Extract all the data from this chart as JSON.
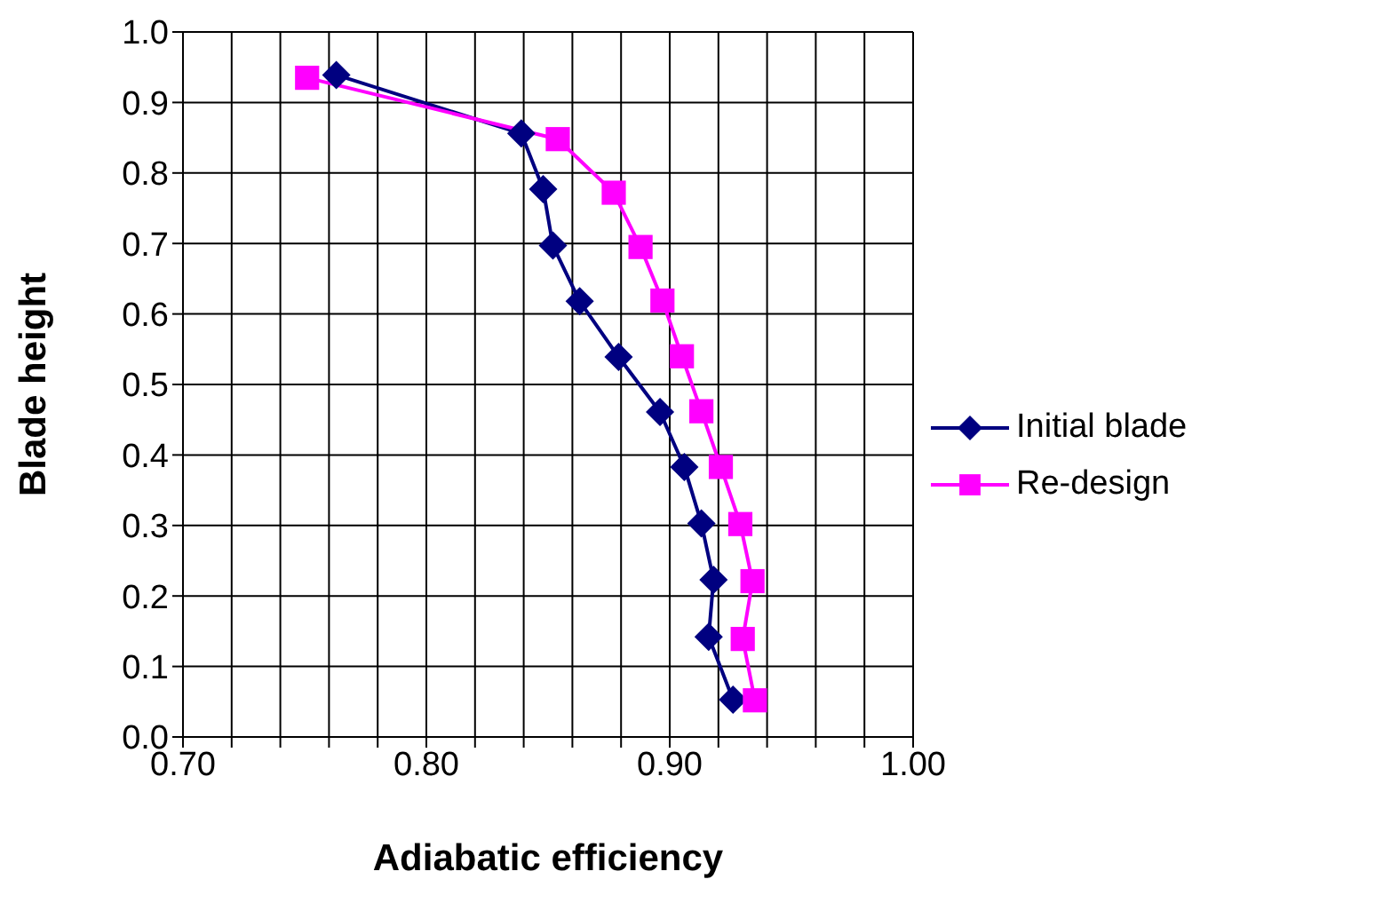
{
  "chart_data": {
    "type": "line",
    "xlabel": "Adiabatic efficiency",
    "ylabel": "Blade height",
    "xlim": [
      0.7,
      1.0
    ],
    "xticks": [
      {
        "value": 0.7,
        "label": "0.70"
      },
      {
        "value": 0.72,
        "label": null
      },
      {
        "value": 0.74,
        "label": null
      },
      {
        "value": 0.76,
        "label": null
      },
      {
        "value": 0.78,
        "label": null
      },
      {
        "value": 0.8,
        "label": "0.80"
      },
      {
        "value": 0.82,
        "label": null
      },
      {
        "value": 0.84,
        "label": null
      },
      {
        "value": 0.86,
        "label": null
      },
      {
        "value": 0.88,
        "label": null
      },
      {
        "value": 0.9,
        "label": "0.90"
      },
      {
        "value": 0.92,
        "label": null
      },
      {
        "value": 0.94,
        "label": null
      },
      {
        "value": 0.96,
        "label": null
      },
      {
        "value": 0.98,
        "label": null
      },
      {
        "value": 1.0,
        "label": "1.00"
      }
    ],
    "ylim": [
      0,
      1
    ],
    "yticks": [
      {
        "value": 0,
        "label": "0.0"
      },
      {
        "value": 0.1,
        "label": "0.1"
      },
      {
        "value": 0.2,
        "label": "0.2"
      },
      {
        "value": 0.3,
        "label": "0.3"
      },
      {
        "value": 0.4,
        "label": "0.4"
      },
      {
        "value": 0.5,
        "label": "0.5"
      },
      {
        "value": 0.6,
        "label": "0.6"
      },
      {
        "value": 0.7,
        "label": "0.7"
      },
      {
        "value": 0.8,
        "label": "0.8"
      },
      {
        "value": 0.9,
        "label": "0.9"
      },
      {
        "value": 1,
        "label": "1.0"
      }
    ],
    "grid": true,
    "legend": "right",
    "line_style": "solid",
    "series": [
      {
        "name": "Initial blade",
        "color": "#000080",
        "marker": "diamond",
        "x": [
          0.763,
          0.839,
          0.848,
          0.852,
          0.863,
          0.879,
          0.896,
          0.906,
          0.913,
          0.918,
          0.916,
          0.926
        ],
        "values": [
          0.939,
          0.856,
          0.777,
          0.697,
          0.618,
          0.539,
          0.461,
          0.383,
          0.303,
          0.223,
          0.142,
          0.053
        ]
      },
      {
        "name": "Re-design",
        "color": "#ff00ff",
        "marker": "square",
        "x": [
          0.751,
          0.854,
          0.877,
          0.888,
          0.897,
          0.905,
          0.913,
          0.921,
          0.929,
          0.934,
          0.93,
          0.935
        ],
        "values": [
          0.935,
          0.848,
          0.772,
          0.695,
          0.619,
          0.54,
          0.462,
          0.383,
          0.302,
          0.221,
          0.139,
          0.052
        ]
      }
    ]
  }
}
